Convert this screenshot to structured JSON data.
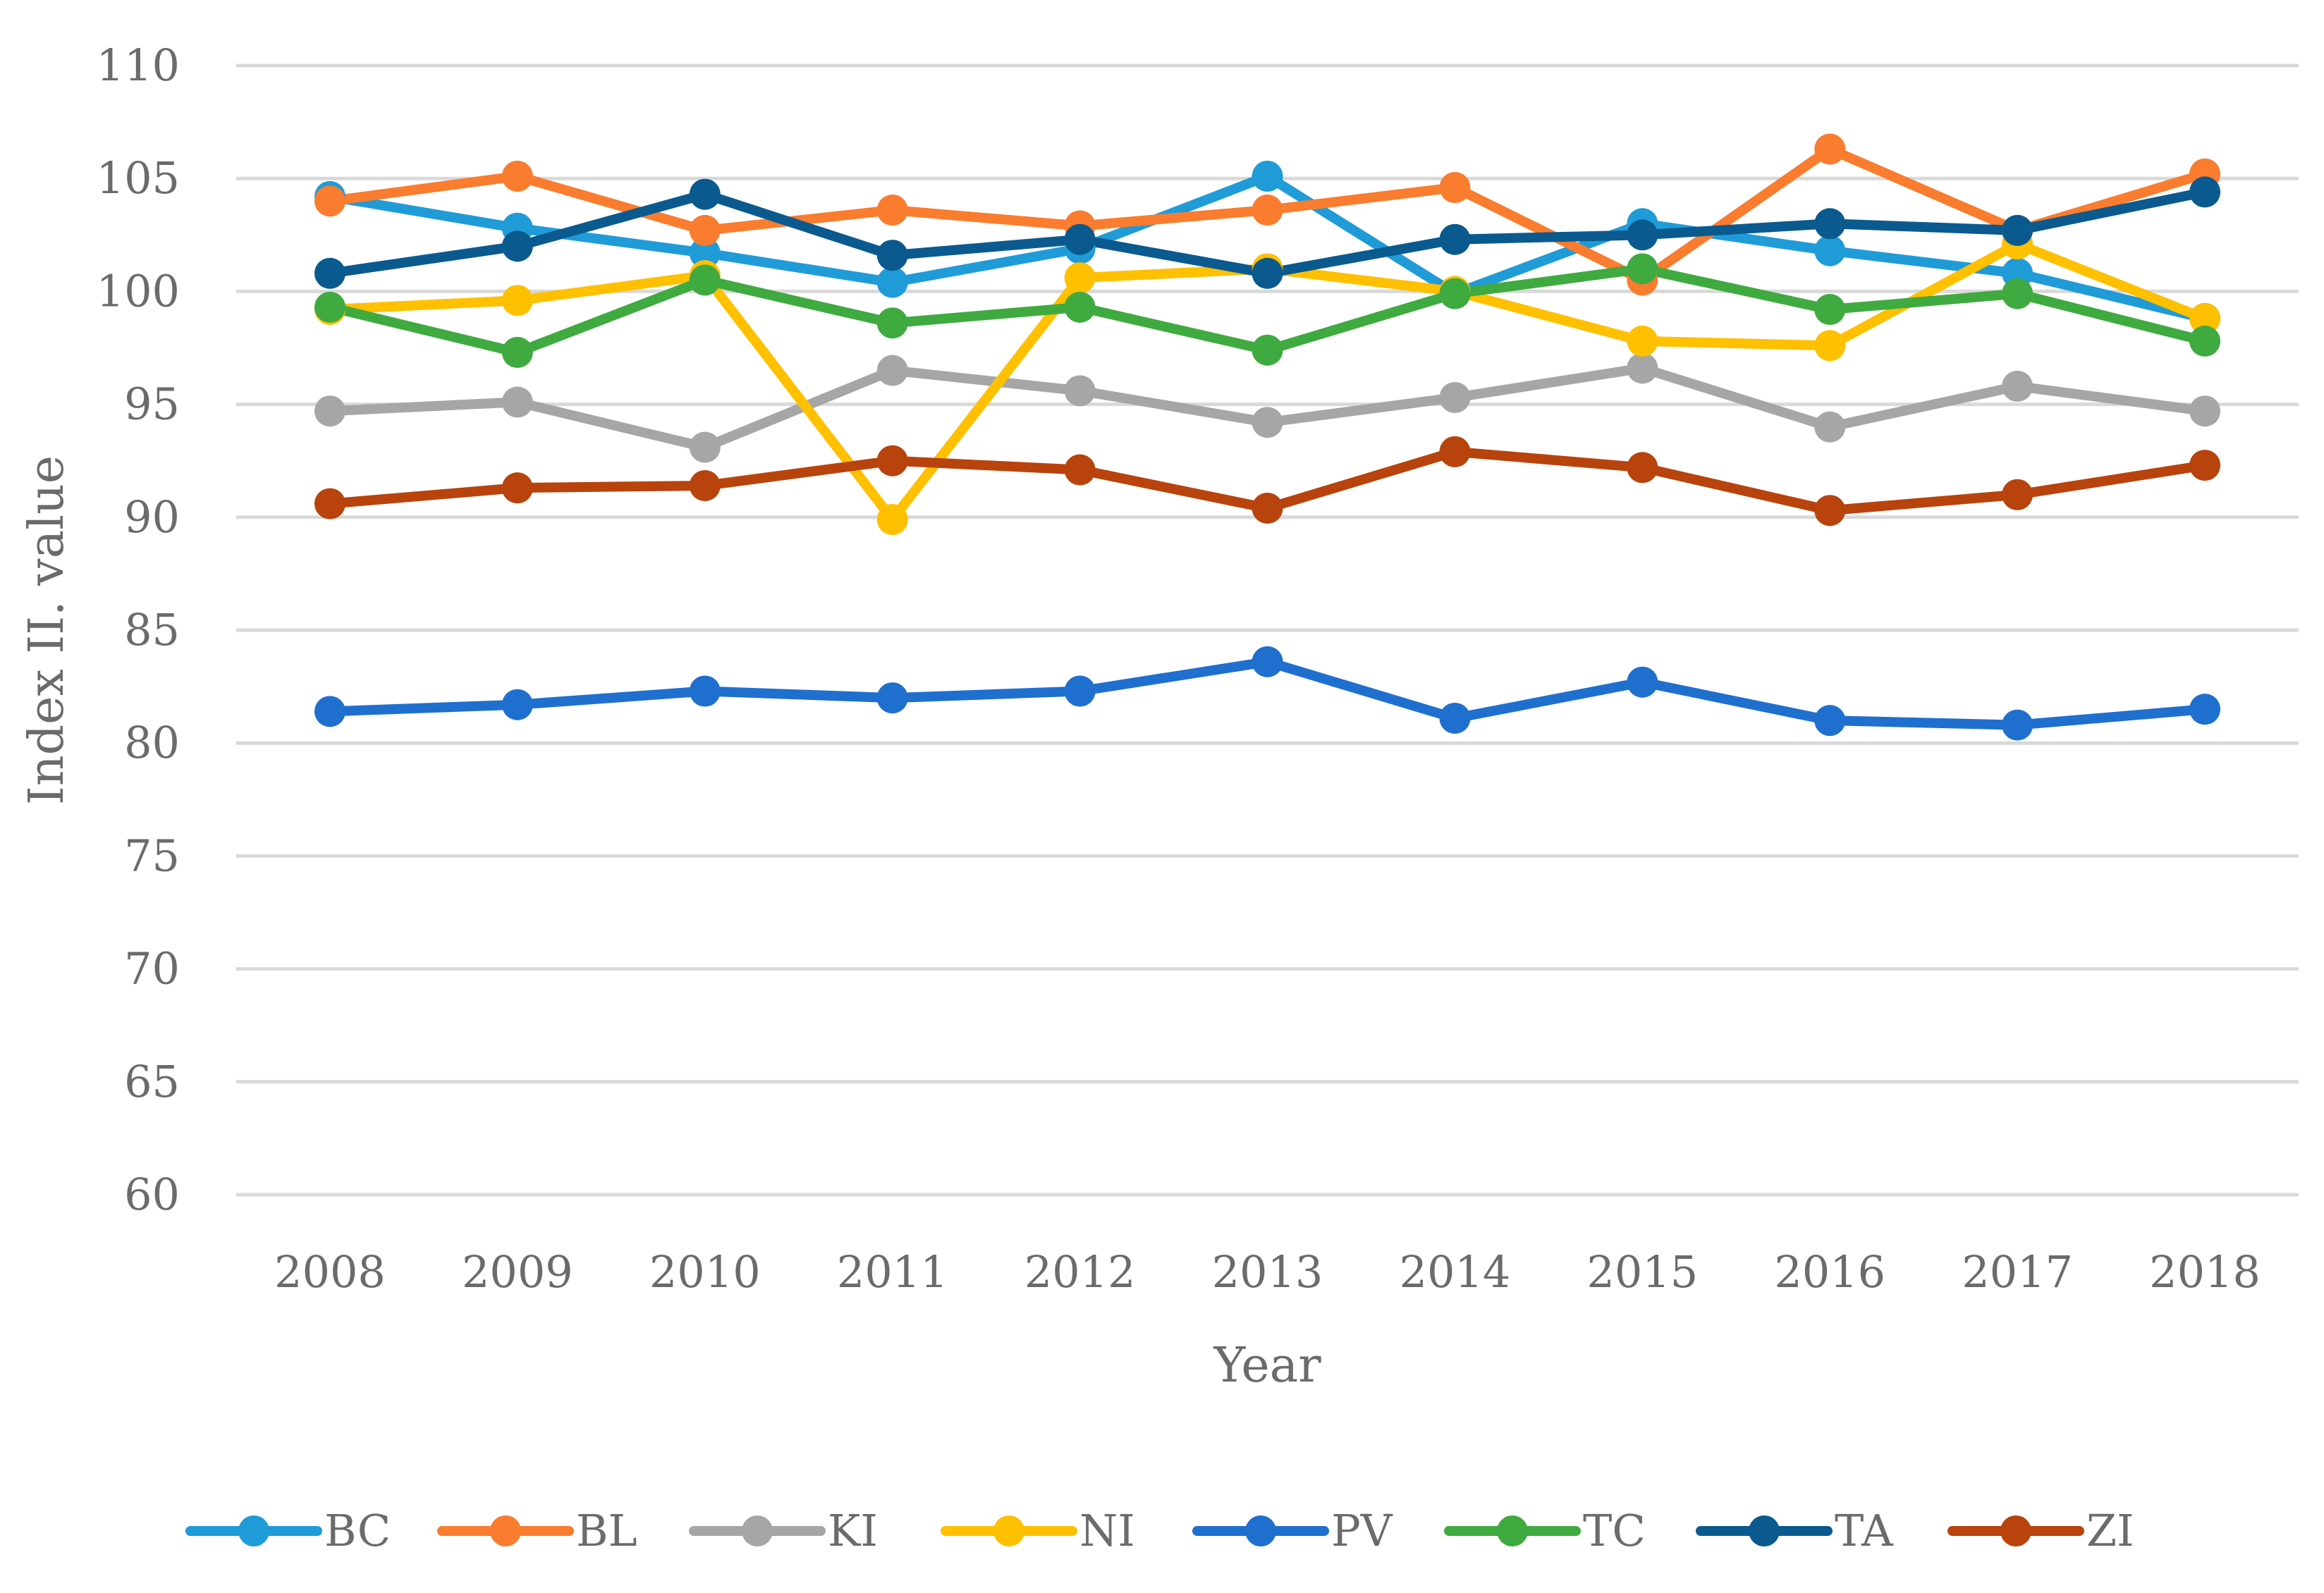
{
  "chart_data": {
    "type": "line",
    "title": "",
    "xlabel": "Year",
    "ylabel": "Index II. value",
    "ylim": [
      60,
      110
    ],
    "ytick_step": 5,
    "grid": true,
    "legend": "bottom",
    "categories": [
      "2008",
      "2009",
      "2010",
      "2011",
      "2012",
      "2013",
      "2014",
      "2015",
      "2016",
      "2017",
      "2018"
    ],
    "series": [
      {
        "name": "BC",
        "color": "#1f9bd8",
        "values": [
          104.2,
          102.8,
          101.7,
          100.4,
          101.9,
          105.1,
          99.9,
          103.0,
          101.8,
          100.8,
          98.8
        ]
      },
      {
        "name": "BL",
        "color": "#f97c2f",
        "values": [
          104.0,
          105.1,
          102.7,
          103.6,
          102.9,
          103.6,
          104.6,
          100.5,
          106.3,
          102.7,
          105.2
        ]
      },
      {
        "name": "KI",
        "color": "#a6a6a6",
        "values": [
          94.7,
          95.1,
          93.1,
          96.5,
          95.6,
          94.2,
          95.3,
          96.6,
          94.0,
          95.8,
          94.7
        ]
      },
      {
        "name": "NI",
        "color": "#ffc000",
        "values": [
          99.2,
          99.6,
          100.7,
          89.9,
          100.6,
          101.0,
          100.0,
          97.8,
          97.6,
          102.1,
          98.8
        ]
      },
      {
        "name": "PV",
        "color": "#1f6fcf",
        "values": [
          81.4,
          81.7,
          82.3,
          82.0,
          82.3,
          83.6,
          81.1,
          82.7,
          81.0,
          80.8,
          81.5
        ]
      },
      {
        "name": "TC",
        "color": "#3faa3f",
        "values": [
          99.3,
          97.3,
          100.5,
          98.6,
          99.3,
          97.4,
          99.9,
          101.0,
          99.2,
          99.9,
          97.8
        ]
      },
      {
        "name": "TA",
        "color": "#0a5a8f",
        "values": [
          100.8,
          102.0,
          104.3,
          101.6,
          102.3,
          100.8,
          102.3,
          102.5,
          103.0,
          102.7,
          104.4
        ]
      },
      {
        "name": "ZI",
        "color": "#b8430c",
        "values": [
          90.6,
          91.3,
          91.4,
          92.5,
          92.1,
          90.4,
          92.9,
          92.2,
          90.3,
          91.0,
          92.3
        ]
      }
    ]
  }
}
